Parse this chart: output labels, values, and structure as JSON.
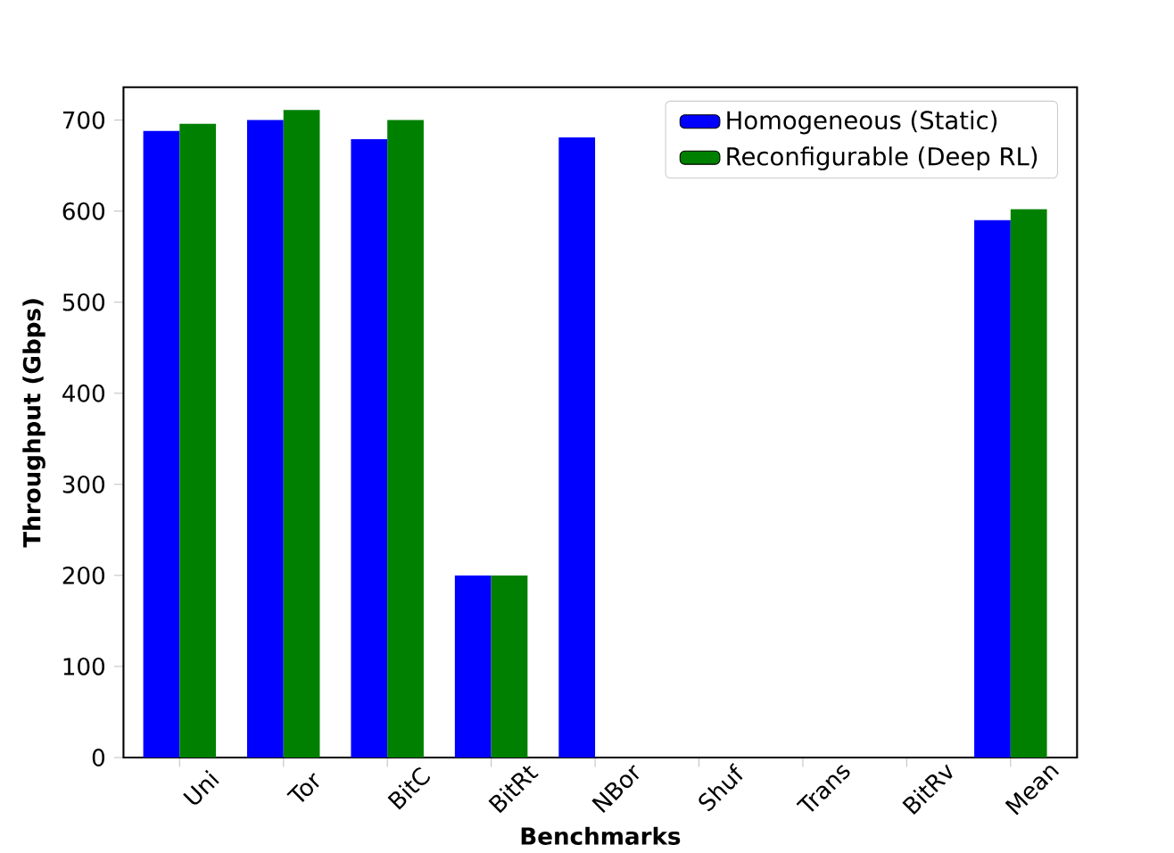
{
  "chart_data": {
    "type": "bar",
    "xlabel": "Benchmarks",
    "ylabel": "Throughput (Gbps)",
    "categories": [
      "Uni",
      "Tor",
      "BitC",
      "BitRt",
      "NBor",
      "Shuf",
      "Trans",
      "BitRv",
      "Mean"
    ],
    "series": [
      {
        "name": "Homogeneous (Static)",
        "color": "#0000ff",
        "values": [
          688,
          700,
          679,
          200,
          681,
          null,
          null,
          null,
          590
        ]
      },
      {
        "name": "Reconfigurable (Deep RL)",
        "color": "#008000",
        "values": [
          696,
          711,
          700,
          200,
          null,
          null,
          null,
          null,
          602
        ]
      }
    ],
    "ylim": [
      0,
      736
    ],
    "yticks": [
      0,
      100,
      200,
      300,
      400,
      500,
      600,
      700
    ],
    "legend": "top right"
  }
}
